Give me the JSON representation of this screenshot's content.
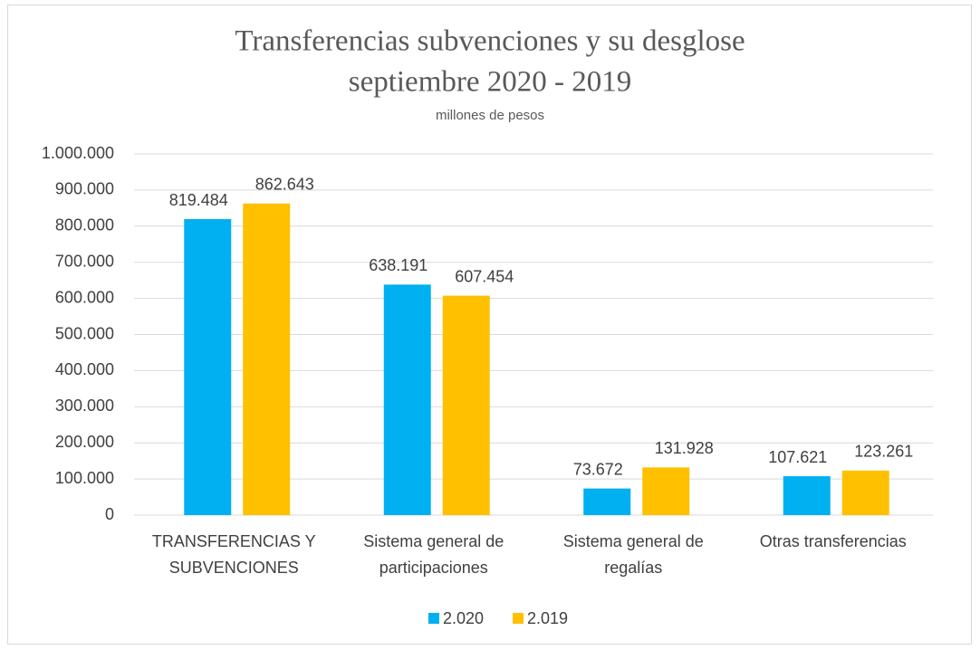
{
  "chart_data": {
    "type": "bar",
    "title": [
      "Transferencias subvenciones y su desglose",
      "septiembre 2020 - 2019"
    ],
    "subtitle": "millones de pesos",
    "categories": [
      "TRANSFERENCIAS Y SUBVENCIONES",
      "Sistema general de participaciones",
      "Sistema general de regalías",
      "Otras transferencias"
    ],
    "series": [
      {
        "name": "2.020",
        "color": "#00b0f0",
        "values": [
          819484,
          638191,
          73672,
          107621
        ],
        "value_labels": [
          "819.484",
          "638.191",
          "73.672",
          "107.621"
        ]
      },
      {
        "name": "2.019",
        "color": "#ffc000",
        "values": [
          862643,
          607454,
          131928,
          123261
        ],
        "value_labels": [
          "862.643",
          "607.454",
          "131.928",
          "123.261"
        ]
      }
    ],
    "ylim": [
      0,
      1000000
    ],
    "yticks": [
      0,
      {
        "value": 100000,
        "label": "100.000"
      },
      {
        "value": 200000,
        "label": "200.000"
      },
      {
        "value": 300000,
        "label": "300.000"
      },
      {
        "value": 400000,
        "label": "400.000"
      },
      {
        "value": 500000,
        "label": "500.000"
      },
      {
        "value": 600000,
        "label": "600.000"
      },
      {
        "value": 700000,
        "label": "700.000"
      },
      {
        "value": 800000,
        "label": "800.000"
      },
      {
        "value": 900000,
        "label": "900.000"
      },
      {
        "value": 1000000,
        "label": "1.000.000"
      }
    ],
    "grid": true,
    "legend": "bottom"
  }
}
